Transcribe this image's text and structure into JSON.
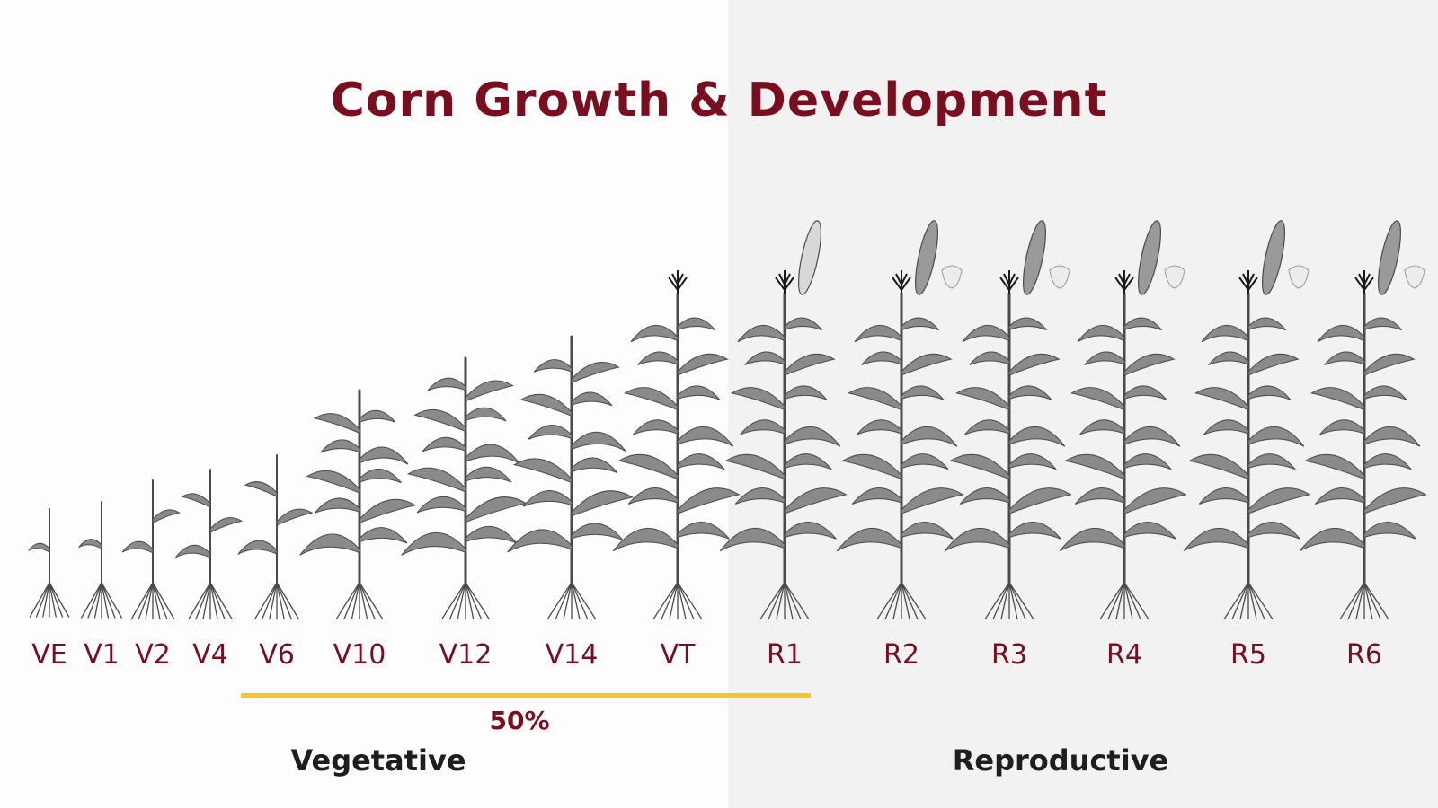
{
  "title": "Corn Growth & Development",
  "colors": {
    "title": "#7a0e1e",
    "stage_label": "#7a0e1e",
    "bracket": "#f6c42c",
    "phase_text": "#1e1e1e",
    "plant_stroke": "#4a4a4a",
    "plant_leaf": "#8a8a8a"
  },
  "stages": [
    {
      "label": "VE",
      "phase": "vegetative",
      "relative_height": 0.22,
      "leaves": 1,
      "tassel": false,
      "ear": false
    },
    {
      "label": "V1",
      "phase": "vegetative",
      "relative_height": 0.24,
      "leaves": 1,
      "tassel": false,
      "ear": false
    },
    {
      "label": "V2",
      "phase": "vegetative",
      "relative_height": 0.3,
      "leaves": 2,
      "tassel": false,
      "ear": false
    },
    {
      "label": "V4",
      "phase": "vegetative",
      "relative_height": 0.33,
      "leaves": 3,
      "tassel": false,
      "ear": false
    },
    {
      "label": "V6",
      "phase": "vegetative",
      "relative_height": 0.37,
      "leaves": 3,
      "tassel": false,
      "ear": false
    },
    {
      "label": "V10",
      "phase": "vegetative",
      "relative_height": 0.55,
      "leaves": 5,
      "tassel": false,
      "ear": false
    },
    {
      "label": "V12",
      "phase": "vegetative",
      "relative_height": 0.64,
      "leaves": 6,
      "tassel": false,
      "ear": false
    },
    {
      "label": "V14",
      "phase": "vegetative",
      "relative_height": 0.7,
      "leaves": 6,
      "tassel": false,
      "ear": false
    },
    {
      "label": "VT",
      "phase": "vegetative",
      "relative_height": 0.82,
      "leaves": 7,
      "tassel": true,
      "ear": false
    },
    {
      "label": "R1",
      "phase": "reproductive",
      "relative_height": 0.82,
      "leaves": 7,
      "tassel": true,
      "ear": true,
      "kernel": false
    },
    {
      "label": "R2",
      "phase": "reproductive",
      "relative_height": 0.82,
      "leaves": 7,
      "tassel": true,
      "ear": true,
      "kernel": true
    },
    {
      "label": "R3",
      "phase": "reproductive",
      "relative_height": 0.82,
      "leaves": 7,
      "tassel": true,
      "ear": true,
      "kernel": true
    },
    {
      "label": "R4",
      "phase": "reproductive",
      "relative_height": 0.82,
      "leaves": 7,
      "tassel": true,
      "ear": true,
      "kernel": true
    },
    {
      "label": "R5",
      "phase": "reproductive",
      "relative_height": 0.82,
      "leaves": 7,
      "tassel": true,
      "ear": true,
      "kernel": true
    },
    {
      "label": "R6",
      "phase": "reproductive",
      "relative_height": 0.82,
      "leaves": 7,
      "tassel": true,
      "ear": true,
      "kernel": true
    }
  ],
  "bracket_label": "50%",
  "phases": {
    "vegetative": "Vegetative",
    "reproductive": "Reproductive"
  }
}
